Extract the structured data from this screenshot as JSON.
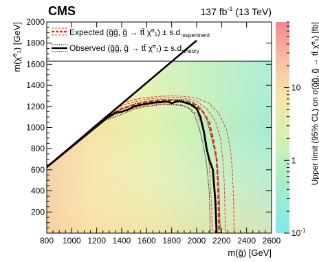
{
  "chart_data": {
    "type": "heatmap",
    "experiment": "CMS",
    "lumi": "137 fb",
    "lumi_sup": "-1",
    "energy": " (13 TeV)",
    "xlabel": "m(g̃) [GeV]",
    "ylabel": "m(χ̃⁰₁) [GeV]",
    "zlabel": "Upper limit (95% CL) on σ(g̃g̃, g̃ → tt̄ χ̃⁰₁) [fb]",
    "xlim": [
      800,
      2600
    ],
    "ylim": [
      0,
      2000
    ],
    "zlim": [
      0.1,
      80
    ],
    "zscale": "log",
    "xticks": [
      800,
      1000,
      1200,
      1400,
      1600,
      1800,
      2000,
      2200,
      2400,
      2600
    ],
    "yticks": [
      200,
      400,
      600,
      800,
      1000,
      1200,
      1400,
      1600,
      1800,
      2000
    ],
    "zticks": [
      {
        "value": 0.1,
        "base": "10",
        "exp": "-1"
      },
      {
        "value": 1,
        "base": "1",
        "exp": ""
      },
      {
        "value": 10,
        "base": "10",
        "exp": ""
      }
    ],
    "legend": {
      "position": "top",
      "entries": [
        {
          "main": "Expected (g̃g̃, g̃ → tt̄ χ̃⁰₁) ± s.d.",
          "sub": "experiment",
          "style": "expected"
        },
        {
          "main": "Observed (g̃g̃, g̃ → tt̄ χ̃⁰₁) ± s.d.",
          "sub": "theory",
          "style": "observed"
        }
      ]
    },
    "diagonal": [
      [
        800,
        625
      ],
      [
        2000,
        1825
      ]
    ],
    "contours": {
      "expected": [
        [
          800,
          625
        ],
        [
          1250,
          1075
        ],
        [
          1400,
          1180
        ],
        [
          1500,
          1215
        ],
        [
          1600,
          1240
        ],
        [
          1700,
          1255
        ],
        [
          1800,
          1260
        ],
        [
          1900,
          1250
        ],
        [
          1980,
          1220
        ],
        [
          2050,
          1150
        ],
        [
          2100,
          1050
        ],
        [
          2130,
          900
        ],
        [
          2160,
          700
        ],
        [
          2170,
          500
        ],
        [
          2175,
          300
        ],
        [
          2180,
          0
        ]
      ],
      "expected_plus": [
        [
          800,
          625
        ],
        [
          1260,
          1095
        ],
        [
          1400,
          1210
        ],
        [
          1500,
          1245
        ],
        [
          1600,
          1268
        ],
        [
          1700,
          1280
        ],
        [
          1800,
          1285
        ],
        [
          1900,
          1280
        ],
        [
          2000,
          1250
        ],
        [
          2080,
          1180
        ],
        [
          2150,
          1060
        ],
        [
          2190,
          900
        ],
        [
          2210,
          700
        ],
        [
          2220,
          500
        ],
        [
          2225,
          300
        ],
        [
          2230,
          0
        ]
      ],
      "expected_minus": [
        [
          800,
          625
        ],
        [
          1240,
          1060
        ],
        [
          1400,
          1150
        ],
        [
          1500,
          1185
        ],
        [
          1600,
          1210
        ],
        [
          1700,
          1225
        ],
        [
          1800,
          1225
        ],
        [
          1880,
          1215
        ],
        [
          1950,
          1180
        ],
        [
          2010,
          1110
        ],
        [
          2050,
          1000
        ],
        [
          2080,
          850
        ],
        [
          2100,
          650
        ],
        [
          2110,
          450
        ],
        [
          2120,
          250
        ],
        [
          2125,
          0
        ]
      ],
      "expected_plus2": [
        [
          800,
          625
        ],
        [
          1280,
          1105
        ],
        [
          1400,
          1230
        ],
        [
          1500,
          1265
        ],
        [
          1600,
          1285
        ],
        [
          1700,
          1295
        ],
        [
          1800,
          1300
        ],
        [
          1900,
          1295
        ],
        [
          2000,
          1280
        ],
        [
          2100,
          1230
        ],
        [
          2180,
          1130
        ],
        [
          2240,
          980
        ],
        [
          2270,
          800
        ],
        [
          2285,
          600
        ],
        [
          2295,
          350
        ],
        [
          2300,
          0
        ]
      ],
      "observed": [
        [
          800,
          625
        ],
        [
          1280,
          1090
        ],
        [
          1350,
          1140
        ],
        [
          1400,
          1150
        ],
        [
          1450,
          1170
        ],
        [
          1500,
          1200
        ],
        [
          1550,
          1215
        ],
        [
          1600,
          1225
        ],
        [
          1650,
          1235
        ],
        [
          1700,
          1240
        ],
        [
          1750,
          1245
        ],
        [
          1780,
          1245
        ],
        [
          1800,
          1230
        ],
        [
          1820,
          1240
        ],
        [
          1860,
          1250
        ],
        [
          1900,
          1240
        ],
        [
          1950,
          1220
        ],
        [
          2000,
          1180
        ],
        [
          2030,
          1100
        ],
        [
          2060,
          950
        ],
        [
          2080,
          800
        ],
        [
          2100,
          700
        ],
        [
          2130,
          600
        ],
        [
          2150,
          300
        ],
        [
          2160,
          0
        ]
      ],
      "observed_plus": [
        [
          800,
          625
        ],
        [
          1290,
          1110
        ],
        [
          1400,
          1175
        ],
        [
          1500,
          1225
        ],
        [
          1600,
          1250
        ],
        [
          1700,
          1265
        ],
        [
          1800,
          1265
        ],
        [
          1900,
          1265
        ],
        [
          1970,
          1240
        ],
        [
          2030,
          1190
        ],
        [
          2080,
          1080
        ],
        [
          2120,
          900
        ],
        [
          2160,
          700
        ],
        [
          2180,
          400
        ],
        [
          2190,
          0
        ]
      ],
      "observed_minus": [
        [
          800,
          625
        ],
        [
          1270,
          1070
        ],
        [
          1400,
          1125
        ],
        [
          1500,
          1175
        ],
        [
          1600,
          1200
        ],
        [
          1700,
          1215
        ],
        [
          1800,
          1215
        ],
        [
          1880,
          1210
        ],
        [
          1930,
          1190
        ],
        [
          1980,
          1130
        ],
        [
          2020,
          1000
        ],
        [
          2050,
          850
        ],
        [
          2080,
          650
        ],
        [
          2100,
          400
        ],
        [
          2110,
          0
        ]
      ]
    }
  }
}
